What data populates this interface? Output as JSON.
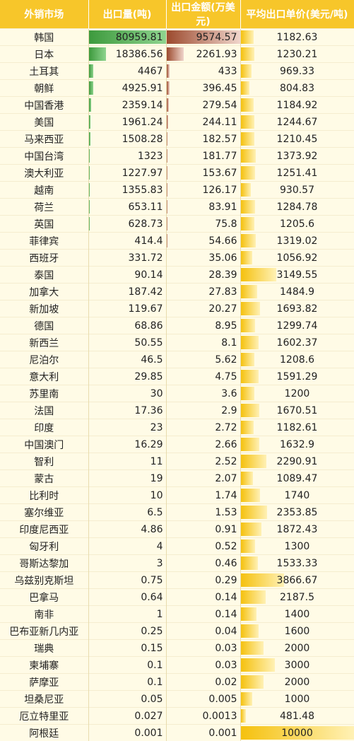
{
  "headers": [
    "外销市场",
    "出口量(吨)",
    "出口金额(万美元)",
    "平均出口单价(美元/吨)"
  ],
  "max": {
    "qty": 80959.81,
    "amt": 9574.57,
    "avg": 10000
  },
  "colors": {
    "header": "#f7c62a",
    "qty_bar": "#3d9a3d",
    "amt_bar": "#9c4a2e",
    "avg_bar": "#f5c10e"
  },
  "rows": [
    {
      "market": "韩国",
      "qty": "80959.81",
      "amt": "9574.57",
      "avg": "1182.63"
    },
    {
      "market": "日本",
      "qty": "18386.56",
      "amt": "2261.93",
      "avg": "1230.21"
    },
    {
      "market": "土耳其",
      "qty": "4467",
      "amt": "433",
      "avg": "969.33"
    },
    {
      "market": "朝鲜",
      "qty": "4925.91",
      "amt": "396.45",
      "avg": "804.83"
    },
    {
      "market": "中国香港",
      "qty": "2359.14",
      "amt": "279.54",
      "avg": "1184.92"
    },
    {
      "market": "美国",
      "qty": "1961.24",
      "amt": "244.11",
      "avg": "1244.67"
    },
    {
      "market": "马来西亚",
      "qty": "1508.28",
      "amt": "182.57",
      "avg": "1210.45"
    },
    {
      "market": "中国台湾",
      "qty": "1323",
      "amt": "181.77",
      "avg": "1373.92"
    },
    {
      "market": "澳大利亚",
      "qty": "1227.97",
      "amt": "153.67",
      "avg": "1251.41"
    },
    {
      "market": "越南",
      "qty": "1355.83",
      "amt": "126.17",
      "avg": "930.57"
    },
    {
      "market": "荷兰",
      "qty": "653.11",
      "amt": "83.91",
      "avg": "1284.78"
    },
    {
      "market": "英国",
      "qty": "628.73",
      "amt": "75.8",
      "avg": "1205.6"
    },
    {
      "market": "菲律宾",
      "qty": "414.4",
      "amt": "54.66",
      "avg": "1319.02"
    },
    {
      "market": "西班牙",
      "qty": "331.72",
      "amt": "35.06",
      "avg": "1056.92"
    },
    {
      "market": "泰国",
      "qty": "90.14",
      "amt": "28.39",
      "avg": "3149.55"
    },
    {
      "market": "加拿大",
      "qty": "187.42",
      "amt": "27.83",
      "avg": "1484.9"
    },
    {
      "market": "新加坡",
      "qty": "119.67",
      "amt": "20.27",
      "avg": "1693.82"
    },
    {
      "market": "德国",
      "qty": "68.86",
      "amt": "8.95",
      "avg": "1299.74"
    },
    {
      "market": "新西兰",
      "qty": "50.55",
      "amt": "8.1",
      "avg": "1602.37"
    },
    {
      "market": "尼泊尔",
      "qty": "46.5",
      "amt": "5.62",
      "avg": "1208.6"
    },
    {
      "market": "意大利",
      "qty": "29.85",
      "amt": "4.75",
      "avg": "1591.29"
    },
    {
      "market": "苏里南",
      "qty": "30",
      "amt": "3.6",
      "avg": "1200"
    },
    {
      "market": "法国",
      "qty": "17.36",
      "amt": "2.9",
      "avg": "1670.51"
    },
    {
      "market": "印度",
      "qty": "23",
      "amt": "2.72",
      "avg": "1182.61"
    },
    {
      "market": "中国澳门",
      "qty": "16.29",
      "amt": "2.66",
      "avg": "1632.9"
    },
    {
      "market": "智利",
      "qty": "11",
      "amt": "2.52",
      "avg": "2290.91"
    },
    {
      "market": "蒙古",
      "qty": "19",
      "amt": "2.07",
      "avg": "1089.47"
    },
    {
      "market": "比利时",
      "qty": "10",
      "amt": "1.74",
      "avg": "1740"
    },
    {
      "market": "塞尔维亚",
      "qty": "6.5",
      "amt": "1.53",
      "avg": "2353.85"
    },
    {
      "market": "印度尼西亚",
      "qty": "4.86",
      "amt": "0.91",
      "avg": "1872.43"
    },
    {
      "market": "匈牙利",
      "qty": "4",
      "amt": "0.52",
      "avg": "1300"
    },
    {
      "market": "哥斯达黎加",
      "qty": "3",
      "amt": "0.46",
      "avg": "1533.33"
    },
    {
      "market": "乌兹别克斯坦",
      "qty": "0.75",
      "amt": "0.29",
      "avg": "3866.67"
    },
    {
      "market": "巴拿马",
      "qty": "0.64",
      "amt": "0.14",
      "avg": "2187.5"
    },
    {
      "market": "南非",
      "qty": "1",
      "amt": "0.14",
      "avg": "1400"
    },
    {
      "market": "巴布亚新几内亚",
      "qty": "0.25",
      "amt": "0.04",
      "avg": "1600"
    },
    {
      "market": "瑞典",
      "qty": "0.15",
      "amt": "0.03",
      "avg": "2000"
    },
    {
      "market": "柬埔寨",
      "qty": "0.1",
      "amt": "0.03",
      "avg": "3000"
    },
    {
      "market": "萨摩亚",
      "qty": "0.1",
      "amt": "0.02",
      "avg": "2000"
    },
    {
      "market": "坦桑尼亚",
      "qty": "0.05",
      "amt": "0.005",
      "avg": "1000"
    },
    {
      "market": "厄立特里亚",
      "qty": "0.027",
      "amt": "0.0013",
      "avg": "481.48"
    },
    {
      "market": "阿根廷",
      "qty": "0.001",
      "amt": "0.001",
      "avg": "10000"
    }
  ]
}
